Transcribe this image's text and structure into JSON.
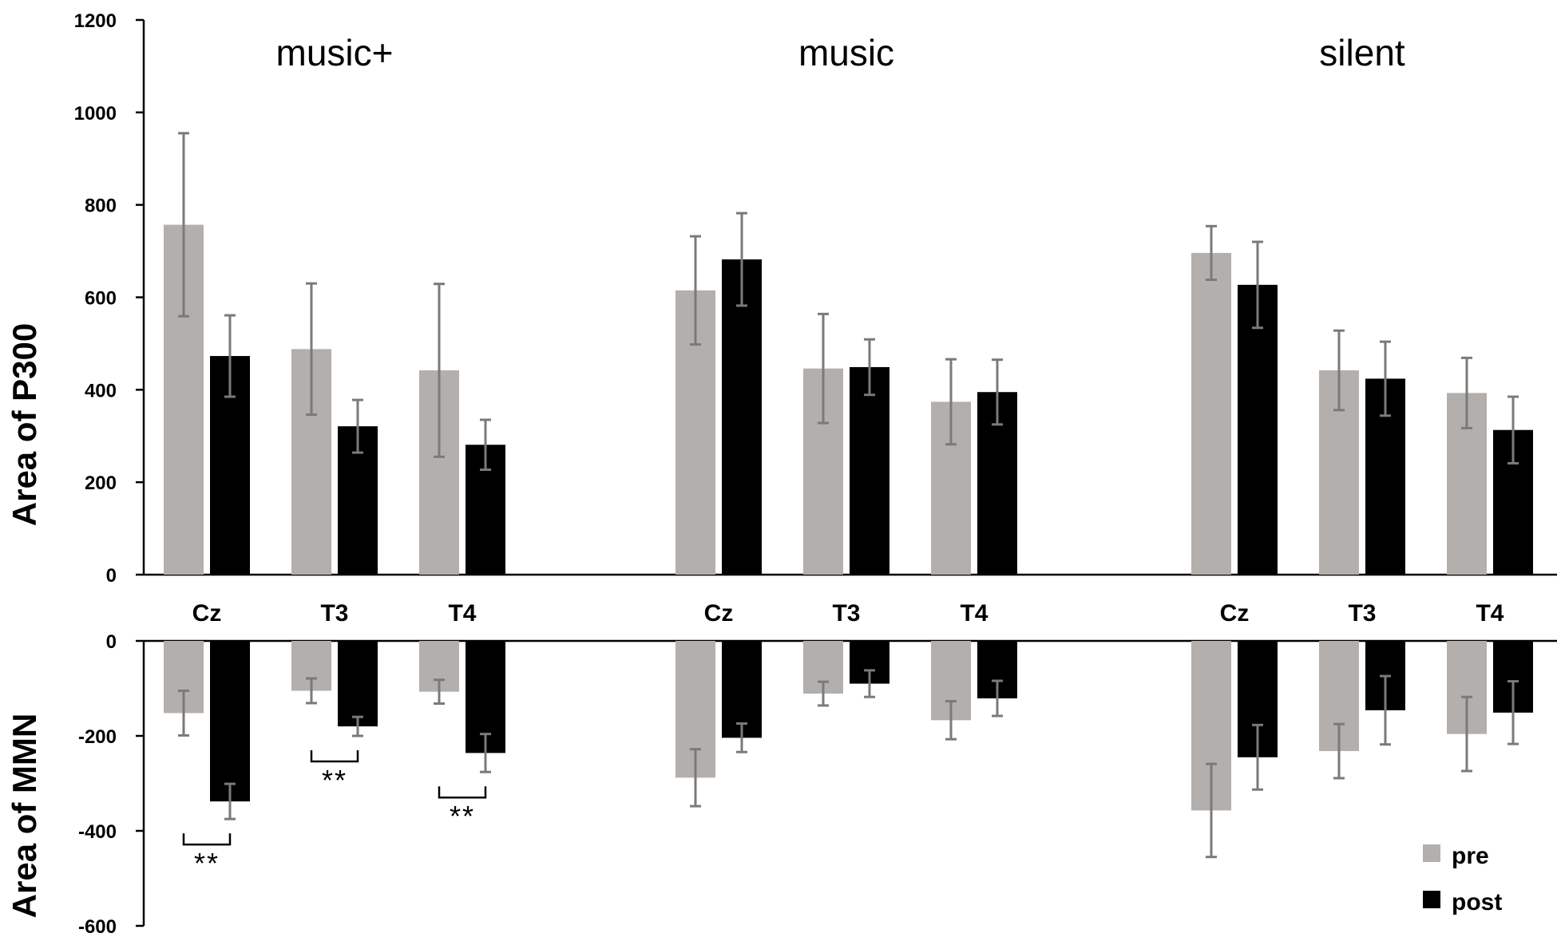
{
  "chart_data": [
    {
      "type": "bar",
      "ylabel": "Area of P300",
      "ylim": [
        0,
        1200
      ],
      "yticks": [
        0,
        200,
        400,
        600,
        800,
        1000,
        1200
      ],
      "groups": [
        "music+",
        "music",
        "silent"
      ],
      "categories": [
        "Cz",
        "T3",
        "T4"
      ],
      "series": [
        {
          "name": "pre",
          "color": "#b3afac",
          "values": [
            [
              757,
              488,
              442
            ],
            [
              615,
              446,
              374
            ],
            [
              696,
              442,
              393
            ]
          ],
          "errors": [
            [
              198,
              142,
              187
            ],
            [
              117,
              118,
              92
            ],
            [
              58,
              86,
              76
            ]
          ]
        },
        {
          "name": "post",
          "color": "#000000",
          "values": [
            [
              473,
              321,
              281
            ],
            [
              682,
              449,
              395
            ],
            [
              627,
              424,
              313
            ]
          ],
          "errors": [
            [
              88,
              57,
              54
            ],
            [
              100,
              60,
              70
            ],
            [
              93,
              80,
              72
            ]
          ]
        }
      ],
      "significance": []
    },
    {
      "type": "bar",
      "ylabel": "Area of MMN",
      "ylim": [
        -600,
        0
      ],
      "yticks": [
        0,
        -200,
        -400,
        -600
      ],
      "groups": [
        "music+",
        "music",
        "silent"
      ],
      "categories": [
        "Cz",
        "T3",
        "T4"
      ],
      "series": [
        {
          "name": "pre",
          "color": "#b3afac",
          "values": [
            [
              -152,
              -105,
              -107
            ],
            [
              -288,
              -111,
              -167
            ],
            [
              -357,
              -232,
              -196
            ]
          ],
          "errors": [
            [
              47,
              26,
              25
            ],
            [
              60,
              25,
              40
            ],
            [
              98,
              57,
              78
            ]
          ]
        },
        {
          "name": "post",
          "color": "#000000",
          "values": [
            [
              -338,
              -180,
              -236
            ],
            [
              -204,
              -90,
              -121
            ],
            [
              -245,
              -146,
              -151
            ]
          ],
          "errors": [
            [
              37,
              20,
              40
            ],
            [
              30,
              28,
              37
            ],
            [
              68,
              72,
              66
            ]
          ]
        }
      ],
      "significance": [
        {
          "group": 0,
          "category": 0,
          "label": "**"
        },
        {
          "group": 0,
          "category": 1,
          "label": "**"
        },
        {
          "group": 0,
          "category": 2,
          "label": "**"
        }
      ]
    }
  ],
  "legend": {
    "position": "bottom-right",
    "items": [
      "pre",
      "post"
    ]
  },
  "colors": {
    "pre": "#b3afac",
    "post": "#000000",
    "error_bar": "#7a7a7a"
  }
}
